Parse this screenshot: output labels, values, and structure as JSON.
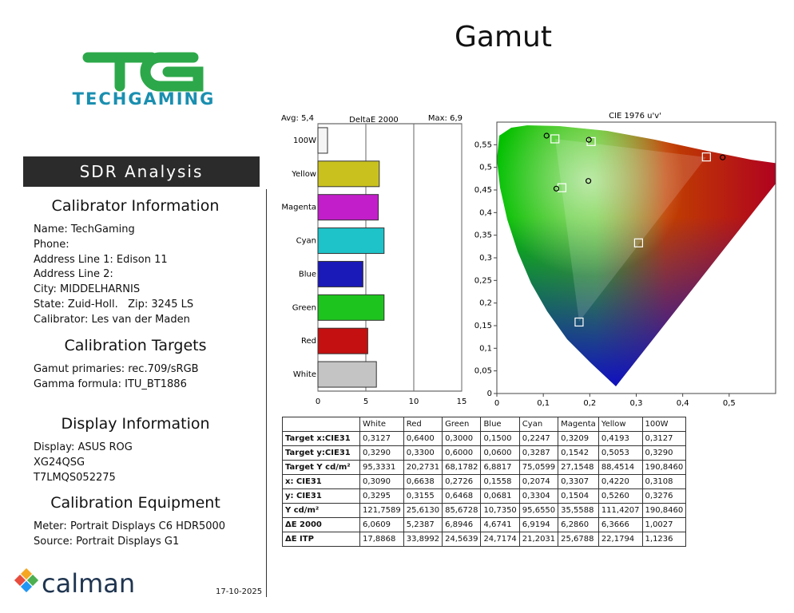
{
  "header": {
    "title": "Gamut",
    "logo": "TECHGAMING"
  },
  "sidebar": {
    "banner": "SDR Analysis",
    "sections": [
      {
        "heading": "Calibrator Information",
        "lines": [
          "Name: TechGaming",
          "Phone:",
          "Address Line 1: Edison 11",
          "Address Line 2:",
          "City: MIDDELHARNIS",
          "State: Zuid-Holl.   Zip: 3245 LS",
          "Calibrator: Les van der Maden"
        ]
      },
      {
        "heading": "Calibration Targets",
        "lines": [
          "Gamut primaries: rec.709/sRGB",
          "Gamma formula: ITU_BT1886"
        ]
      },
      {
        "heading": "Display Information",
        "lines": [
          "Display: ASUS ROG",
          "XG24QSG",
          "T7LMQS052275"
        ]
      },
      {
        "heading": "Calibration Equipment",
        "lines": [
          "Meter: Portrait Displays C6 HDR5000",
          "Source: Portrait Displays G1"
        ]
      }
    ]
  },
  "footer": {
    "brand": "calman",
    "date": "17-10-2025"
  },
  "chart_data": [
    {
      "type": "bar",
      "orientation": "horizontal",
      "title": "DeltaE 2000",
      "annotations": [
        "Avg: 5,4",
        "Max: 6,9"
      ],
      "categories": [
        "100W",
        "Yellow",
        "Magenta",
        "Cyan",
        "Blue",
        "Green",
        "Red",
        "White"
      ],
      "values": [
        1.0,
        6.4,
        6.3,
        6.9,
        4.7,
        6.9,
        5.2,
        6.1
      ],
      "colors": [
        "#f4f4f4",
        "#c9c21e",
        "#c21ec9",
        "#1ec3c9",
        "#1a1ab8",
        "#1ec41e",
        "#c41010",
        "#c4c4c4"
      ],
      "xlim": [
        0,
        15
      ],
      "xticks": [
        0,
        5,
        10,
        15
      ],
      "grid": true
    },
    {
      "type": "scatter",
      "title": "CIE 1976 u'v'",
      "xlim": [
        0,
        0.6
      ],
      "ylim": [
        0,
        0.6
      ],
      "xticks": [
        0,
        {
          "value": 0.1,
          "label": "0,1"
        },
        {
          "value": 0.2,
          "label": "0,2"
        },
        {
          "value": 0.3,
          "label": "0,3"
        },
        {
          "value": 0.4,
          "label": "0,4"
        },
        {
          "value": 0.5,
          "label": "0,5"
        }
      ],
      "yticks": [
        0,
        {
          "value": 0.05,
          "label": "0,05"
        },
        {
          "value": 0.1,
          "label": "0,1"
        },
        {
          "value": 0.15,
          "label": "0,15"
        },
        {
          "value": 0.2,
          "label": "0,2"
        },
        {
          "value": 0.25,
          "label": "0,25"
        },
        {
          "value": 0.3,
          "label": "0,3"
        },
        {
          "value": 0.35,
          "label": "0,35"
        },
        {
          "value": 0.4,
          "label": "0,4"
        },
        {
          "value": 0.45,
          "label": "0,45"
        },
        {
          "value": 0.5,
          "label": "0,5"
        },
        {
          "value": 0.55,
          "label": "0,55"
        }
      ],
      "series": [
        {
          "marker": "square",
          "color": "#ffffff",
          "x": [
            0.125,
            0.203,
            0.451,
            0.14,
            0.305,
            0.177
          ],
          "y": [
            0.563,
            0.557,
            0.523,
            0.455,
            0.333,
            0.158
          ]
        },
        {
          "marker": "circle",
          "color": "#000000",
          "x": [
            0.107,
            0.198,
            0.486,
            0.128,
            0.197
          ],
          "y": [
            0.57,
            0.561,
            0.522,
            0.453,
            0.47
          ]
        }
      ]
    }
  ],
  "table": {
    "columns": [
      "White",
      "Red",
      "Green",
      "Blue",
      "Cyan",
      "Magenta",
      "Yellow",
      "100W"
    ],
    "rows": [
      {
        "label": "Target x:CIE31",
        "values": [
          "0,3127",
          "0,6400",
          "0,3000",
          "0,1500",
          "0,2247",
          "0,3209",
          "0,4193",
          "0,3127"
        ]
      },
      {
        "label": "Target y:CIE31",
        "values": [
          "0,3290",
          "0,3300",
          "0,6000",
          "0,0600",
          "0,3287",
          "0,1542",
          "0,5053",
          "0,3290"
        ]
      },
      {
        "label": "Target Y cd/m²",
        "values": [
          "95,3331",
          "20,2731",
          "68,1782",
          "6,8817",
          "75,0599",
          "27,1548",
          "88,4514",
          "190,8460"
        ]
      },
      {
        "label": "x: CIE31",
        "values": [
          "0,3090",
          "0,6638",
          "0,2726",
          "0,1558",
          "0,2074",
          "0,3307",
          "0,4220",
          "0,3108"
        ]
      },
      {
        "label": "y: CIE31",
        "values": [
          "0,3295",
          "0,3155",
          "0,6468",
          "0,0681",
          "0,3304",
          "0,1504",
          "0,5260",
          "0,3276"
        ]
      },
      {
        "label": "Y cd/m²",
        "values": [
          "121,7589",
          "25,6130",
          "85,6728",
          "10,7350",
          "95,6550",
          "35,5588",
          "111,4207",
          "190,8460"
        ]
      },
      {
        "label": "ΔE 2000",
        "values": [
          "6,0609",
          "5,2387",
          "6,8946",
          "4,6741",
          "6,9194",
          "6,2860",
          "6,3666",
          "1,0027"
        ]
      },
      {
        "label": "ΔE ITP",
        "values": [
          "17,8868",
          "33,8992",
          "24,5639",
          "24,7174",
          "21,2031",
          "25,6788",
          "22,1794",
          "1,1236"
        ]
      }
    ]
  }
}
